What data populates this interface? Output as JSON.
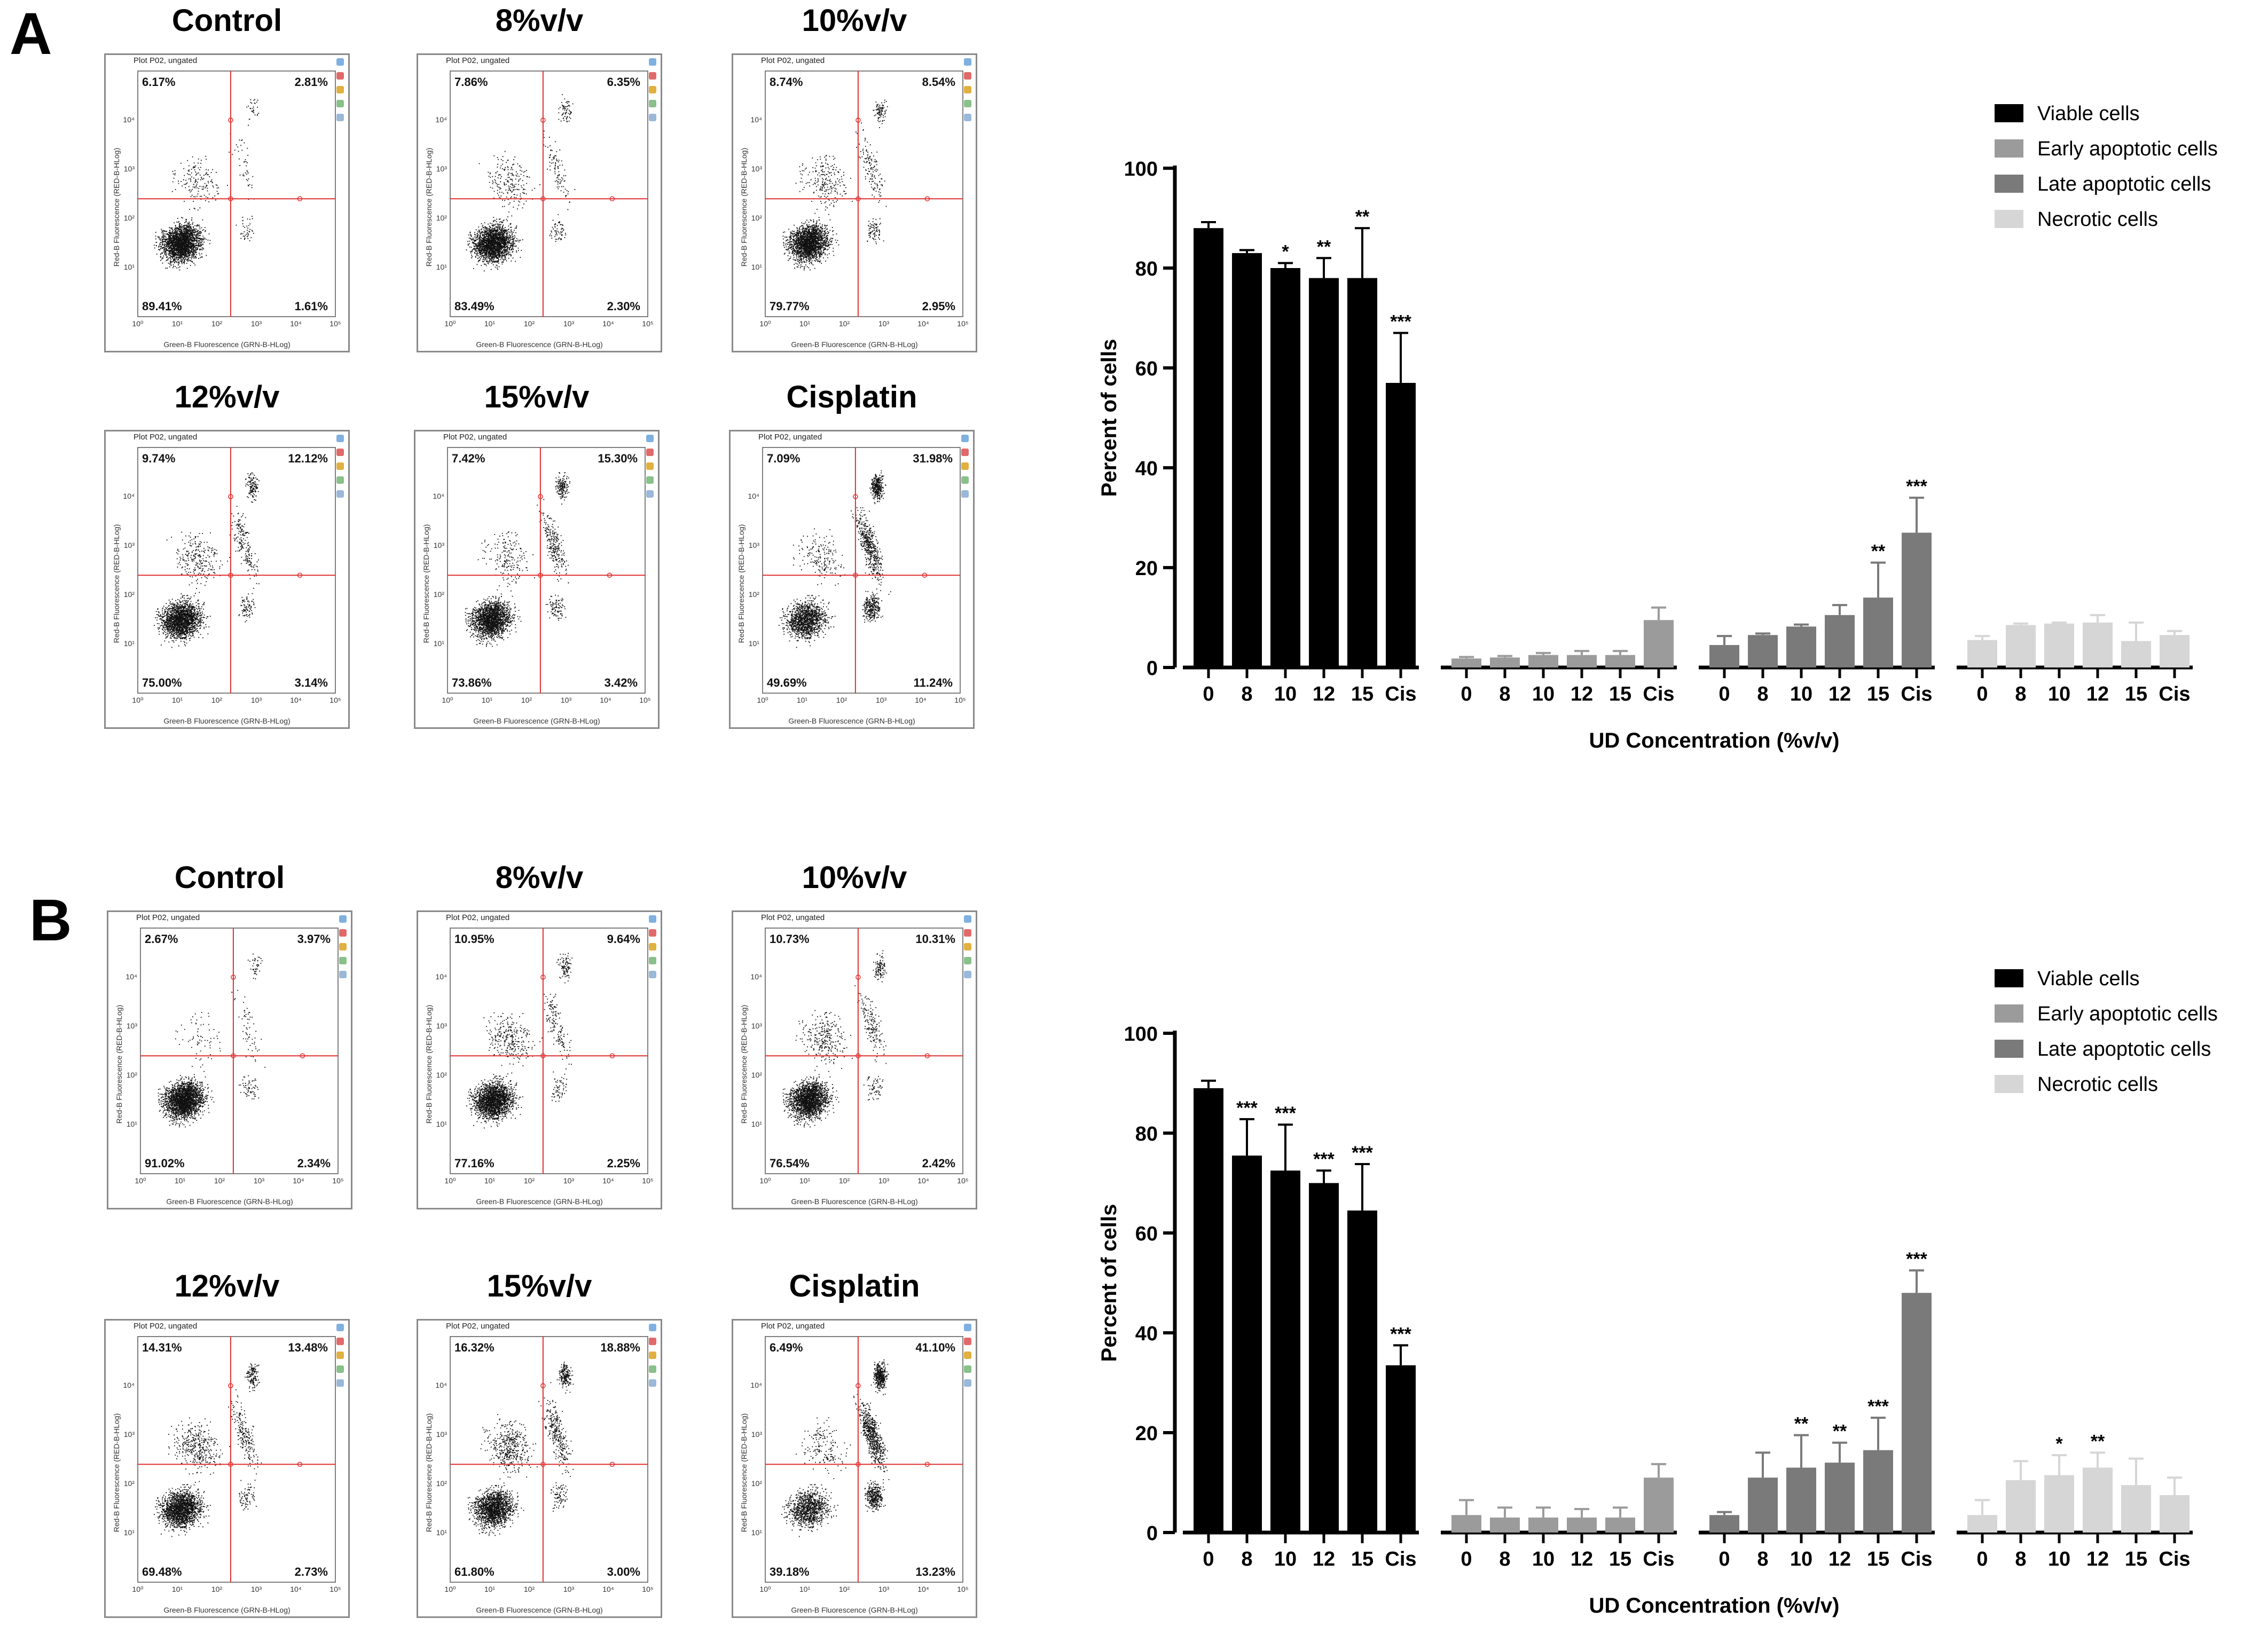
{
  "panels": [
    {
      "letter": "A",
      "flow_plots": [
        {
          "title": "Control",
          "plot_label": "Plot P02, ungated",
          "q_ul": "6.17%",
          "q_ur": "2.81%",
          "q_ll": "89.41%",
          "q_lr": "1.61%"
        },
        {
          "title": "8%v/v",
          "plot_label": "Plot P02, ungated",
          "q_ul": "7.86%",
          "q_ur": "6.35%",
          "q_ll": "83.49%",
          "q_lr": "2.30%"
        },
        {
          "title": "10%v/v",
          "plot_label": "Plot P02, ungated",
          "q_ul": "8.74%",
          "q_ur": "8.54%",
          "q_ll": "79.77%",
          "q_lr": "2.95%"
        },
        {
          "title": "12%v/v",
          "plot_label": "Plot P02, ungated",
          "q_ul": "9.74%",
          "q_ur": "12.12%",
          "q_ll": "75.00%",
          "q_lr": "3.14%"
        },
        {
          "title": "15%v/v",
          "plot_label": "Plot P02, ungated",
          "q_ul": "7.42%",
          "q_ur": "15.30%",
          "q_ll": "73.86%",
          "q_lr": "3.42%"
        },
        {
          "title": "Cisplatin",
          "plot_label": "Plot P02, ungated",
          "q_ul": "7.09%",
          "q_ur": "31.98%",
          "q_ll": "49.69%",
          "q_lr": "11.24%"
        }
      ]
    },
    {
      "letter": "B",
      "flow_plots": [
        {
          "title": "Control",
          "plot_label": "Plot P02, ungated",
          "q_ul": "2.67%",
          "q_ur": "3.97%",
          "q_ll": "91.02%",
          "q_lr": "2.34%"
        },
        {
          "title": "8%v/v",
          "plot_label": "Plot P02, ungated",
          "q_ul": "10.95%",
          "q_ur": "9.64%",
          "q_ll": "77.16%",
          "q_lr": "2.25%"
        },
        {
          "title": "10%v/v",
          "plot_label": "Plot P02, ungated",
          "q_ul": "10.73%",
          "q_ur": "10.31%",
          "q_ll": "76.54%",
          "q_lr": "2.42%"
        },
        {
          "title": "12%v/v",
          "plot_label": "Plot P02, ungated",
          "q_ul": "14.31%",
          "q_ur": "13.48%",
          "q_ll": "69.48%",
          "q_lr": "2.73%"
        },
        {
          "title": "15%v/v",
          "plot_label": "Plot P02, ungated",
          "q_ul": "16.32%",
          "q_ur": "18.88%",
          "q_ll": "61.80%",
          "q_lr": "3.00%"
        },
        {
          "title": "Cisplatin",
          "plot_label": "Plot P02, ungated",
          "q_ul": "6.49%",
          "q_ur": "41.10%",
          "q_ll": "39.18%",
          "q_lr": "13.23%"
        }
      ]
    }
  ],
  "flow_axis": {
    "x_label": "Green-B Fluorescence (GRN-B-HLog)",
    "y_label": "Red-B Fluorescence (RED-B-HLog)",
    "ticks": [
      "10⁰",
      "10¹",
      "10²",
      "10³",
      "10⁴",
      "10⁵"
    ]
  },
  "colors": {
    "viable": "#000000",
    "early": "#9b9b9b",
    "late": "#7a7a7a",
    "necrotic": "#d6d6d6",
    "gate": "#e03030",
    "dots": "#111111"
  },
  "chart_data": [
    {
      "type": "bar",
      "panel": "A",
      "ylabel": "Percent of cells",
      "xlabel": "UD Concentration (%v/v)",
      "ylim": [
        0,
        100
      ],
      "yticks": [
        0,
        20,
        40,
        60,
        80,
        100
      ],
      "categories": [
        "0",
        "8",
        "10",
        "12",
        "15",
        "Cis"
      ],
      "series": [
        {
          "name": "Viable cells",
          "color_key": "viable",
          "values": [
            88,
            83,
            80,
            78,
            78,
            57
          ],
          "errors": [
            1.2,
            0.6,
            1,
            4,
            10,
            10
          ],
          "sig": [
            "",
            "",
            "*",
            "**",
            "**",
            "***"
          ]
        },
        {
          "name": "Early apoptotic cells",
          "color_key": "early",
          "values": [
            1.8,
            2,
            2.5,
            2.5,
            2.5,
            9.5
          ],
          "errors": [
            0.3,
            0.3,
            0.4,
            0.8,
            0.8,
            2.5
          ],
          "sig": [
            "",
            "",
            "",
            "",
            "",
            ""
          ]
        },
        {
          "name": "Late apoptotic cells",
          "color_key": "late",
          "values": [
            4.5,
            6.5,
            8.2,
            10.5,
            14,
            27
          ],
          "errors": [
            1.8,
            0.3,
            0.4,
            2,
            7,
            7
          ],
          "sig": [
            "",
            "",
            "",
            "",
            "**",
            "***"
          ]
        },
        {
          "name": "Necrotic cells",
          "color_key": "necrotic",
          "values": [
            5.5,
            8.5,
            8.8,
            9,
            5.3,
            6.5
          ],
          "errors": [
            0.8,
            0.3,
            0.2,
            1.5,
            3.7,
            0.8
          ],
          "sig": [
            "",
            "",
            "",
            "",
            "",
            ""
          ]
        }
      ]
    },
    {
      "type": "bar",
      "panel": "B",
      "ylabel": "Percent of cells",
      "xlabel": "UD Concentration (%v/v)",
      "ylim": [
        0,
        100
      ],
      "yticks": [
        0,
        20,
        40,
        60,
        80,
        100
      ],
      "categories": [
        "0",
        "8",
        "10",
        "12",
        "15",
        "Cis"
      ],
      "series": [
        {
          "name": "Viable cells",
          "color_key": "viable",
          "values": [
            89,
            75.5,
            72.5,
            70,
            64.5,
            33.5
          ],
          "errors": [
            1.5,
            7.3,
            9.2,
            2.5,
            9.3,
            4
          ],
          "sig": [
            "",
            "***",
            "***",
            "***",
            "***",
            "***"
          ]
        },
        {
          "name": "Early apoptotic cells",
          "color_key": "early",
          "values": [
            3.5,
            3,
            3,
            3,
            3,
            11
          ],
          "errors": [
            3,
            2,
            2,
            1.7,
            2,
            2.7
          ],
          "sig": [
            "",
            "",
            "",
            "",
            "",
            ""
          ]
        },
        {
          "name": "Late apoptotic cells",
          "color_key": "late",
          "values": [
            3.5,
            11,
            13,
            14,
            16.5,
            48
          ],
          "errors": [
            0.6,
            5,
            6.5,
            4,
            6.5,
            4.5
          ],
          "sig": [
            "",
            "",
            "**",
            "**",
            "***",
            "***"
          ]
        },
        {
          "name": "Necrotic cells",
          "color_key": "necrotic",
          "values": [
            3.5,
            10.5,
            11.5,
            13,
            9.5,
            7.5
          ],
          "errors": [
            3,
            3.8,
            4,
            3,
            5.3,
            3.5
          ],
          "sig": [
            "",
            "",
            "*",
            "**",
            "",
            ""
          ]
        }
      ]
    }
  ]
}
